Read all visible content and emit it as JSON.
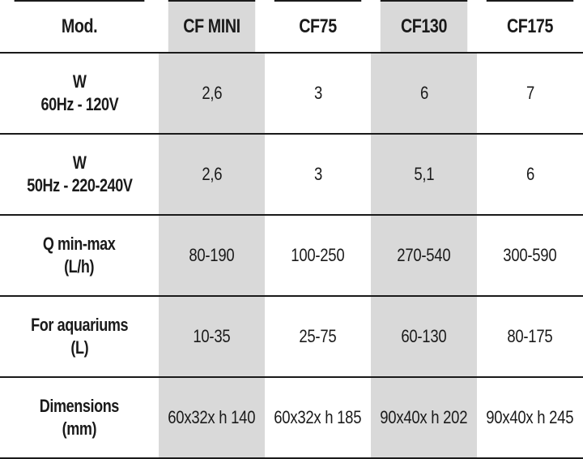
{
  "table": {
    "header": {
      "label": "Mod.",
      "models": [
        "CF MINI",
        "CF75",
        "CF130",
        "CF175"
      ]
    },
    "rows": [
      {
        "label_line1": "W",
        "label_line2": "60Hz - 120V",
        "values": [
          "2,6",
          "3",
          "6",
          "7"
        ]
      },
      {
        "label_line1": "W",
        "label_line2": "50Hz - 220-240V",
        "values": [
          "2,6",
          "3",
          "5,1",
          "6"
        ]
      },
      {
        "label_line1": "Q min-max",
        "label_line2": "(L/h)",
        "values": [
          "80-190",
          "100-250",
          "270-540",
          "300-590"
        ]
      },
      {
        "label_line1": "For aquariums",
        "label_line2": "(L)",
        "values": [
          "10-35",
          "25-75",
          "60-130",
          "80-175"
        ]
      },
      {
        "label_line1": "Dimensions",
        "label_line2": "(mm)",
        "values": [
          "60x32x h 140",
          "60x32x h 185",
          "90x40x h 202",
          "90x40x h 245"
        ]
      }
    ],
    "colors": {
      "shaded_column": "#d9d9d9",
      "rule_line": "#1a1a1a",
      "text": "#1a1a1a"
    }
  }
}
